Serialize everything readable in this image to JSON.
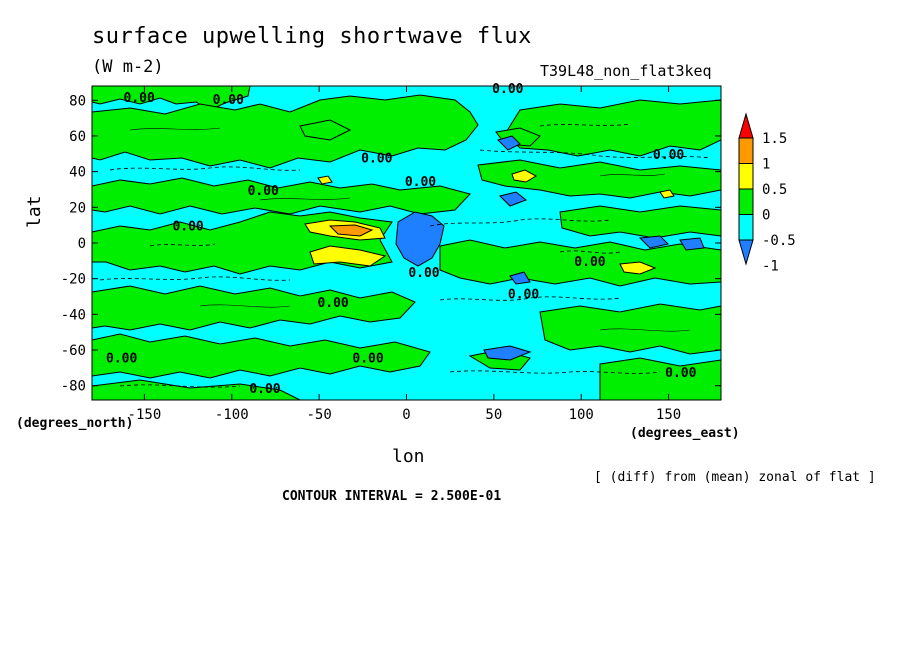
{
  "chart_data": {
    "type": "heatmap",
    "title": "surface upwelling shortwave flux",
    "units": "(W m-2)",
    "run_label": "T39L48_non_flat3keq",
    "xlabel": "lon",
    "ylabel": "lat",
    "x_unit_label": "(degrees_east)",
    "y_unit_label": "(degrees_north)",
    "xlim": [
      -180,
      180
    ],
    "ylim": [
      -88,
      88
    ],
    "x_ticks": [
      -150,
      -100,
      -50,
      0,
      50,
      100,
      150
    ],
    "y_ticks": [
      80,
      60,
      40,
      20,
      0,
      -20,
      -40,
      -60,
      -80
    ],
    "x_tick_labels": [
      "-150",
      "-100",
      "-50",
      "0",
      "50",
      "100",
      "150"
    ],
    "y_tick_labels": [
      "80",
      "60",
      "40",
      "20",
      "0",
      "-20",
      "-40",
      "-60",
      "-80"
    ],
    "colorbar": {
      "levels": [
        -1,
        -0.5,
        0,
        0.5,
        1,
        1.5
      ],
      "labels": [
        "1.5",
        "1",
        "0.5",
        "0",
        "-0.5",
        "-1"
      ],
      "colors": [
        "#1e7fff",
        "#00ffff",
        "#00ee00",
        "#ffff00",
        "#ff9900",
        "#ff0000"
      ],
      "extend": "both"
    },
    "contour_label": "0.00",
    "contour_label_positions": [
      {
        "lon": -153,
        "lat": 79
      },
      {
        "lon": -102,
        "lat": 78
      },
      {
        "lon": 58,
        "lat": 84
      },
      {
        "lon": -17,
        "lat": 45
      },
      {
        "lon": 150,
        "lat": 47
      },
      {
        "lon": 8,
        "lat": 32
      },
      {
        "lon": -82,
        "lat": 27
      },
      {
        "lon": -125,
        "lat": 7
      },
      {
        "lon": 10,
        "lat": -19
      },
      {
        "lon": 105,
        "lat": -13
      },
      {
        "lon": 67,
        "lat": -31
      },
      {
        "lon": -42,
        "lat": -36
      },
      {
        "lon": -163,
        "lat": -67
      },
      {
        "lon": -22,
        "lat": -67
      },
      {
        "lon": 157,
        "lat": -75
      },
      {
        "lon": -81,
        "lat": -84
      }
    ],
    "features": [
      {
        "lon": -35,
        "lat": 7,
        "value": 1.25
      },
      {
        "lon": -25,
        "lat": -8,
        "value": 0.75
      },
      {
        "lon": 65,
        "lat": 36,
        "value": 0.75
      },
      {
        "lon": 130,
        "lat": -15,
        "value": 0.75
      },
      {
        "lon": 10,
        "lat": 5,
        "value": -0.75
      },
      {
        "lon": 60,
        "lat": 55,
        "value": -0.75
      },
      {
        "lon": 60,
        "lat": -63,
        "value": -0.75
      },
      {
        "lon": 130,
        "lat": 0,
        "value": -0.75
      }
    ]
  },
  "footer": {
    "note": "[ (diff) from (mean) zonal of flat ]",
    "contour_interval": "CONTOUR INTERVAL = 2.500E-01"
  }
}
